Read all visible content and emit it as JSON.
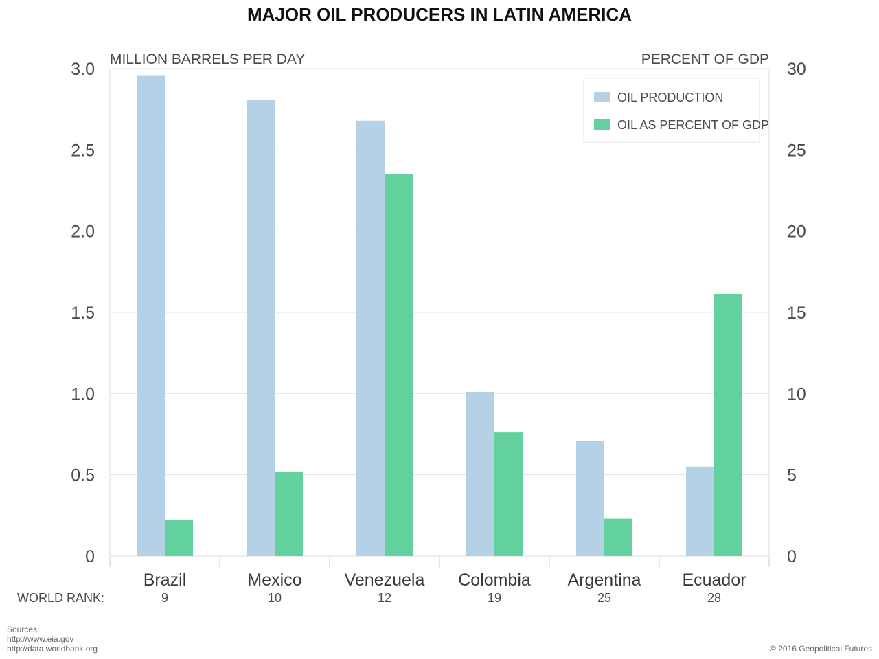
{
  "chart_data": {
    "type": "bar",
    "title": "MAJOR OIL PRODUCERS IN LATIN AMERICA",
    "ylabel_left": "MILLION BARRELS PER DAY",
    "ylabel_right": "PERCENT OF GDP",
    "categories": [
      "Brazil",
      "Mexico",
      "Venezuela",
      "Colombia",
      "Argentina",
      "Ecuador"
    ],
    "world_rank_label": "WORLD RANK:",
    "world_rank": [
      "9",
      "10",
      "12",
      "19",
      "25",
      "28"
    ],
    "left_axis": {
      "min": 0,
      "max": 3.0,
      "ticks": [
        0,
        0.5,
        1.0,
        1.5,
        2.0,
        2.5,
        3.0
      ],
      "tick_labels": [
        "0",
        "0.5",
        "1.0",
        "1.5",
        "2.0",
        "2.5",
        "3.0"
      ]
    },
    "right_axis": {
      "min": 0,
      "max": 30,
      "ticks": [
        0,
        5,
        10,
        15,
        20,
        25,
        30
      ],
      "tick_labels": [
        "0",
        "5",
        "10",
        "15",
        "20",
        "25",
        "30"
      ]
    },
    "series": [
      {
        "name": "OIL PRODUCTION",
        "axis": "left",
        "color": "#b5d1e5",
        "values": [
          2.96,
          2.81,
          2.68,
          1.01,
          0.71,
          0.55
        ]
      },
      {
        "name": "OIL AS PERCENT OF GDP",
        "axis": "right",
        "color": "#62d19e",
        "values": [
          2.2,
          5.2,
          23.5,
          7.6,
          2.3,
          16.1
        ]
      }
    ],
    "grid": true,
    "legend_position": "top-right"
  },
  "sources": {
    "label": "Sources:",
    "lines": [
      "http://www.eia.gov",
      "http://data.worldbank.org"
    ]
  },
  "copyright": "© 2016 Geopolitical Futures"
}
